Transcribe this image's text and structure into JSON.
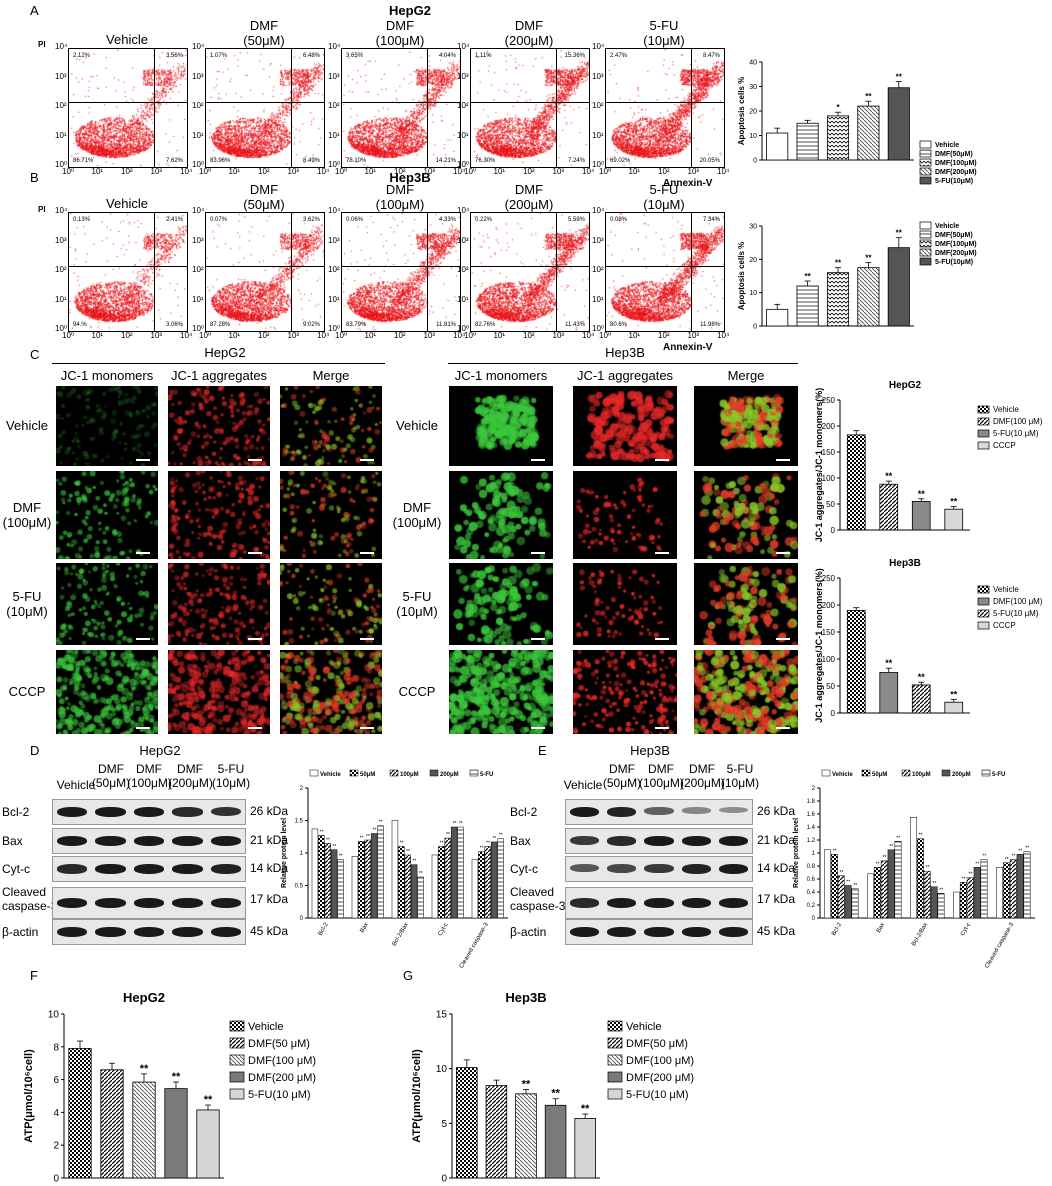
{
  "panels": {
    "A": "A",
    "B": "B",
    "C": "C",
    "D": "D",
    "E": "E",
    "F": "F",
    "G": "G"
  },
  "flow_rows": [
    {
      "cell_line": "HepG2",
      "conditions": [
        "Vehicle",
        "DMF\n(50μM)",
        "DMF\n(100μM)",
        "DMF\n(200μM)",
        "5-FU\n(10μM)"
      ],
      "quadrants": [
        [
          "2.12%",
          "3.56%",
          "86.71%",
          "7.62%"
        ],
        [
          "1.07%",
          "6.48%",
          "83.96%",
          "8.49%"
        ],
        [
          "3.65%",
          "4.04%",
          "78.10%",
          "14.21%"
        ],
        [
          "1.11%",
          "15.36%",
          "76.30%",
          "7.24%"
        ],
        [
          "2.47%",
          "8.47%",
          "69.02%",
          "20.05%"
        ]
      ],
      "y_axis": "PI",
      "x_axis": "Annexin-V",
      "ticks": [
        "10⁰",
        "10¹",
        "10²",
        "10³",
        "10⁴"
      ]
    },
    {
      "cell_line": "Hep3B",
      "conditions": [
        "Vehicle",
        "DMF\n(50μM)",
        "DMF\n(100μM)",
        "DMF\n(200μM)",
        "5-FU\n(10μM)"
      ],
      "quadrants": [
        [
          "0.13%",
          "2.41%",
          "94.%",
          "3.06%"
        ],
        [
          "0.07%",
          "3.62%",
          "87.28%",
          "9.02%"
        ],
        [
          "0.06%",
          "4.33%",
          "83.79%",
          "11.81%"
        ],
        [
          "0.22%",
          "5.59%",
          "82.76%",
          "11.43%"
        ],
        [
          "0.08%",
          "7.34%",
          "80.6%",
          "11.98%"
        ]
      ],
      "y_axis": "PI",
      "x_axis": "Annexin-V",
      "ticks": [
        "10⁰",
        "10¹",
        "10²",
        "10³",
        "10⁴"
      ]
    }
  ],
  "jc1": {
    "left_title": "HepG2",
    "right_title": "Hep3B",
    "columns": [
      "JC-1 monomers",
      "JC-1 aggregates",
      "Merge"
    ],
    "rows": [
      "Vehicle",
      "DMF\n(100μM)",
      "5-FU\n(10μM)",
      "CCCP"
    ]
  },
  "blots": {
    "left_title": "HepG2",
    "right_title": "Hep3B",
    "lanes": [
      "Vehicle",
      "DMF\n(50μM)",
      "DMF\n(100μM)",
      "DMF\n(200μM)",
      "5-FU\n(10μM)"
    ],
    "proteins": [
      "Bcl-2",
      "Bax",
      "Cyt-c",
      "Cleaved\ncaspase-3",
      "β-actin"
    ],
    "kda": [
      "26 kDa",
      "21 kDa",
      "14 kDa",
      "17 kDa",
      "45 kDa"
    ]
  },
  "colors": {
    "flow_dots": "#e8141a",
    "green": "#3cc43a",
    "red": "#e02020",
    "bar_dark": "#555555",
    "bar_grey": "#8a8a8a",
    "bar_light": "#cfcfcf"
  },
  "chart_data": [
    {
      "id": "apoptosis-hepg2",
      "type": "bar",
      "categories": [
        "Vehicle",
        "DMF(50μM)",
        "DMF(100μM)",
        "DMF(200μM)",
        "5-FU(10μM)"
      ],
      "values": [
        11,
        15,
        18,
        22,
        29.5
      ],
      "errors": [
        2,
        1.2,
        1.5,
        2,
        2.5
      ],
      "sig": [
        "",
        "",
        "*",
        "**",
        "**"
      ],
      "ylabel": "Apoptosis cells %",
      "ylim": [
        0,
        40
      ],
      "yticks": [
        0,
        10,
        20,
        30,
        40
      ],
      "legend": [
        "Vehicle",
        "DMF(50μM)",
        "DMF(100μM)",
        "DMF(200μM)",
        "5-FU(10μM)"
      ]
    },
    {
      "id": "apoptosis-hep3b",
      "type": "bar",
      "categories": [
        "Vehicle",
        "DMF(50μM)",
        "DMF(100μM)",
        "DMF(200μM)",
        "5-FU(10μM)"
      ],
      "values": [
        5,
        12,
        16,
        17.5,
        23.5
      ],
      "errors": [
        1.5,
        1.5,
        1.5,
        1.5,
        3
      ],
      "sig": [
        "",
        "**",
        "**",
        "**",
        "**"
      ],
      "ylabel": "Apoptosis cells %",
      "ylim": [
        0,
        30
      ],
      "yticks": [
        0,
        10,
        20,
        30
      ],
      "legend": [
        "Vehicle",
        "DMF(50μM)",
        "DMF(100μM)",
        "DMF(200μM)",
        "5-FU(10μM)"
      ]
    },
    {
      "id": "jc1-hepg2",
      "type": "bar",
      "title": "HepG2",
      "categories": [
        "Vehicle",
        "DMF(100 μM)",
        "5-FU(10 μM)",
        "CCCP"
      ],
      "values": [
        183,
        88,
        55,
        40
      ],
      "errors": [
        8,
        6,
        5,
        5
      ],
      "sig": [
        "",
        "**",
        "**",
        "**"
      ],
      "ylabel": "JC-1 aggregates/JC-1 monomers(%)",
      "ylim": [
        0,
        250
      ],
      "yticks": [
        0,
        50,
        100,
        150,
        200,
        250
      ],
      "legend": [
        "Vehicle",
        "DMF(100 μM)",
        "5-FU(10 μM)",
        "CCCP"
      ]
    },
    {
      "id": "jc1-hep3b",
      "type": "bar",
      "title": "Hep3B",
      "categories": [
        "Vehicle",
        "DMF(100 μM)",
        "5-FU(10 μM)",
        "CCCP"
      ],
      "values": [
        190,
        75,
        52,
        20
      ],
      "errors": [
        5,
        8,
        5,
        5
      ],
      "sig": [
        "",
        "**",
        "**",
        "**"
      ],
      "ylabel": "JC-1 aggregates/JC-1 monomers(%)",
      "ylim": [
        0,
        250
      ],
      "yticks": [
        0,
        50,
        100,
        150,
        200,
        250
      ],
      "legend": [
        "Vehicle",
        "DMF(100 μM)",
        "5-FU(10 μM)",
        "CCCP"
      ]
    },
    {
      "id": "protein-hepg2",
      "type": "bar",
      "categories": [
        "Bcl-2",
        "Bax",
        "Bcl-2/Bax",
        "Cyt-c",
        "Cleaved caspase-3"
      ],
      "series": [
        {
          "name": "Vehicle",
          "values": [
            1.37,
            0.95,
            1.5,
            0.97,
            0.9
          ]
        },
        {
          "name": "50μM",
          "values": [
            1.27,
            1.18,
            1.1,
            1.1,
            1.02
          ]
        },
        {
          "name": "100μM",
          "values": [
            1.15,
            1.2,
            0.97,
            1.23,
            1.1
          ]
        },
        {
          "name": "200μM",
          "values": [
            1.05,
            1.3,
            0.82,
            1.4,
            1.17
          ]
        },
        {
          "name": "5-FU",
          "values": [
            0.9,
            1.42,
            0.63,
            1.4,
            1.22
          ]
        }
      ],
      "ylabel": "Relative protein level",
      "ylim": [
        0,
        2.0
      ],
      "yticks": [
        0.0,
        0.5,
        1.0,
        1.5,
        2.0
      ]
    },
    {
      "id": "protein-hep3b",
      "type": "bar",
      "categories": [
        "Bcl-2",
        "Bax",
        "Bcl-2/Bax",
        "Cyt-c",
        "Cleaved caspase-3"
      ],
      "series": [
        {
          "name": "Vehicle",
          "values": [
            1.05,
            0.68,
            1.55,
            0.4,
            0.78
          ]
        },
        {
          "name": "50μM",
          "values": [
            0.98,
            0.78,
            1.22,
            0.55,
            0.85
          ]
        },
        {
          "name": "100μM",
          "values": [
            0.65,
            0.88,
            0.72,
            0.62,
            0.9
          ]
        },
        {
          "name": "200μM",
          "values": [
            0.5,
            1.05,
            0.48,
            0.78,
            0.98
          ]
        },
        {
          "name": "5-FU",
          "values": [
            0.45,
            1.18,
            0.38,
            0.9,
            1.02
          ]
        }
      ],
      "ylabel": "Relative protein level",
      "ylim": [
        0,
        2.0
      ],
      "yticks": [
        0.0,
        0.2,
        0.4,
        0.6,
        0.8,
        1.0,
        1.2,
        1.4,
        1.6,
        1.8,
        2.0
      ]
    },
    {
      "id": "atp-hepg2",
      "type": "bar",
      "title": "HepG2",
      "categories": [
        "Vehicle",
        "DMF(50 μM)",
        "DMF(100 μM)",
        "DMF(200 μM)",
        "5-FU(10 μM)"
      ],
      "values": [
        7.9,
        6.6,
        5.85,
        5.45,
        4.15
      ],
      "errors": [
        0.45,
        0.4,
        0.5,
        0.4,
        0.3
      ],
      "sig": [
        "",
        "",
        "**",
        "**",
        "**"
      ],
      "ylabel": "ATP(μmol/10⁶cell)",
      "ylim": [
        0,
        10
      ],
      "yticks": [
        0,
        2,
        4,
        6,
        8,
        10
      ],
      "legend": [
        "Vehicle",
        "DMF(50 μM)",
        "DMF(100 μM)",
        "DMF(200 μM)",
        "5-FU(10 μM)"
      ]
    },
    {
      "id": "atp-hep3b",
      "type": "bar",
      "title": "Hep3B",
      "categories": [
        "Vehicle",
        "DMF(50 μM)",
        "DMF(100 μM)",
        "DMF(200 μM)",
        "5-FU(10 μM)"
      ],
      "values": [
        10.1,
        8.45,
        7.7,
        6.65,
        5.45
      ],
      "errors": [
        0.7,
        0.5,
        0.4,
        0.6,
        0.4
      ],
      "sig": [
        "",
        "",
        "**",
        "**",
        "**"
      ],
      "ylabel": "ATP(μmol/10⁶cell)",
      "ylim": [
        0,
        15
      ],
      "yticks": [
        0,
        5,
        10,
        15
      ],
      "legend": [
        "Vehicle",
        "DMF(50 μM)",
        "DMF(100 μM)",
        "DMF(200 μM)",
        "5-FU(10 μM)"
      ]
    }
  ]
}
